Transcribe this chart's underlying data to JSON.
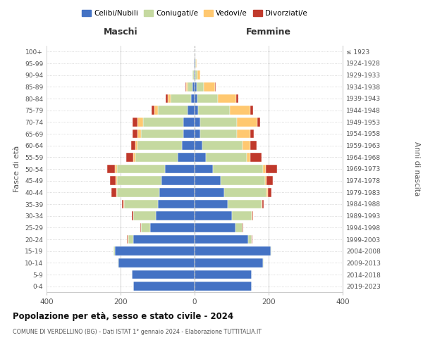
{
  "age_groups": [
    "0-4",
    "5-9",
    "10-14",
    "15-19",
    "20-24",
    "25-29",
    "30-34",
    "35-39",
    "40-44",
    "45-49",
    "50-54",
    "55-59",
    "60-64",
    "65-69",
    "70-74",
    "75-79",
    "80-84",
    "85-89",
    "90-94",
    "95-99",
    "100+"
  ],
  "birth_years": [
    "2019-2023",
    "2014-2018",
    "2009-2013",
    "2004-2008",
    "1999-2003",
    "1994-1998",
    "1989-1993",
    "1984-1988",
    "1979-1983",
    "1974-1978",
    "1969-1973",
    "1964-1968",
    "1959-1963",
    "1954-1958",
    "1949-1953",
    "1944-1948",
    "1939-1943",
    "1934-1938",
    "1929-1933",
    "1924-1928",
    "≤ 1923"
  ],
  "maschi": {
    "celibi": [
      165,
      170,
      205,
      215,
      165,
      120,
      105,
      100,
      95,
      90,
      80,
      45,
      35,
      30,
      30,
      20,
      10,
      5,
      2,
      1,
      0
    ],
    "coniugati": [
      0,
      0,
      2,
      5,
      15,
      25,
      60,
      90,
      115,
      120,
      130,
      115,
      120,
      115,
      110,
      80,
      55,
      15,
      3,
      1,
      0
    ],
    "vedovi": [
      0,
      0,
      0,
      0,
      1,
      0,
      1,
      2,
      2,
      3,
      5,
      5,
      5,
      10,
      15,
      8,
      8,
      3,
      1,
      0,
      0
    ],
    "divorziati": [
      0,
      0,
      0,
      0,
      1,
      2,
      4,
      5,
      12,
      15,
      22,
      20,
      12,
      12,
      12,
      8,
      5,
      2,
      0,
      0,
      0
    ]
  },
  "femmine": {
    "nubili": [
      155,
      155,
      185,
      205,
      145,
      110,
      100,
      90,
      80,
      70,
      50,
      30,
      20,
      15,
      15,
      10,
      8,
      5,
      2,
      1,
      0
    ],
    "coniugate": [
      0,
      0,
      2,
      3,
      10,
      20,
      55,
      90,
      115,
      120,
      135,
      110,
      110,
      100,
      100,
      85,
      55,
      20,
      5,
      2,
      0
    ],
    "vedove": [
      0,
      0,
      0,
      0,
      0,
      0,
      1,
      2,
      3,
      4,
      8,
      10,
      20,
      35,
      55,
      55,
      50,
      30,
      8,
      2,
      0
    ],
    "divorziate": [
      0,
      0,
      0,
      0,
      1,
      2,
      3,
      5,
      10,
      18,
      30,
      30,
      18,
      10,
      8,
      8,
      5,
      2,
      0,
      0,
      0
    ]
  },
  "colors": {
    "celibi": "#4472C4",
    "coniugati": "#c5d9a0",
    "vedovi": "#ffc870",
    "divorziati": "#c0392b"
  },
  "legend_labels": [
    "Celibi/Nubili",
    "Coniugati/e",
    "Vedovi/e",
    "Divorziati/e"
  ],
  "title": "Popolazione per età, sesso e stato civile - 2024",
  "subtitle": "COMUNE DI VERDELLINO (BG) - Dati ISTAT 1° gennaio 2024 - Elaborazione TUTTITALIA.IT",
  "xlabel_left": "Maschi",
  "xlabel_right": "Femmine",
  "ylabel_left": "Fasce di età",
  "ylabel_right": "Anni di nascita",
  "xlim": 400,
  "background_color": "#ffffff"
}
